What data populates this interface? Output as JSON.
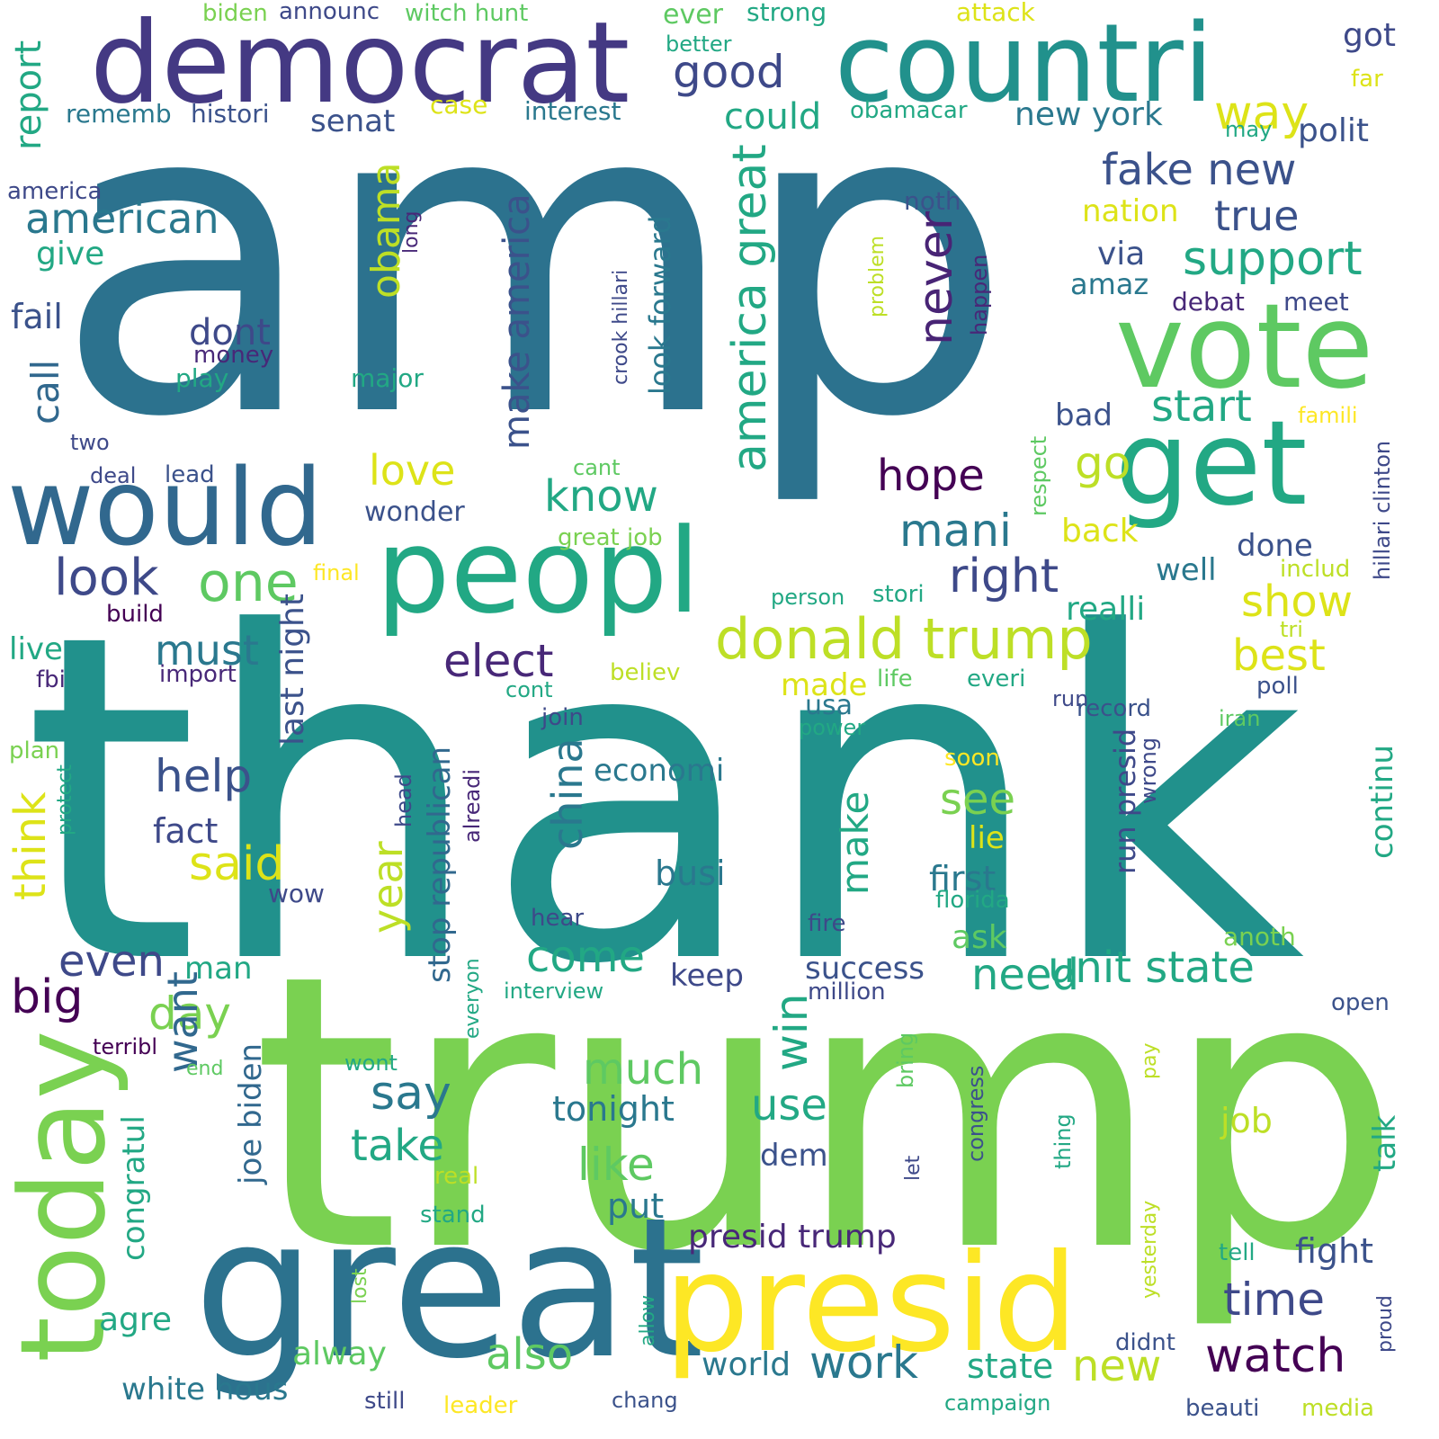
{
  "background": "#ffffff",
  "palette": [
    "#440154",
    "#3b528b",
    "#21918c",
    "#5ec962",
    "#fde725"
  ],
  "words": [
    {
      "text": "amp",
      "color": "#2c728e"
    },
    {
      "text": "thank",
      "color": "#21918c"
    },
    {
      "text": "trump",
      "color": "#7ad151"
    },
    {
      "text": "great",
      "color": "#2c728e"
    },
    {
      "text": "democrat",
      "color": "#443983"
    },
    {
      "text": "countri",
      "color": "#21918c"
    },
    {
      "text": "vote",
      "color": "#5ec962"
    },
    {
      "text": "get",
      "color": "#22a884"
    },
    {
      "text": "would",
      "color": "#31688e"
    },
    {
      "text": "peopl",
      "color": "#22a884"
    },
    {
      "text": "presid",
      "color": "#fde725"
    },
    {
      "text": "today",
      "color": "#7ad151"
    },
    {
      "text": "donald trump",
      "color": "#bddf26"
    },
    {
      "text": "unit state",
      "color": "#22a884"
    },
    {
      "text": "america great",
      "color": "#22a884"
    },
    {
      "text": "make america",
      "color": "#3b528b"
    },
    {
      "text": "fake new",
      "color": "#3b528b"
    },
    {
      "text": "support",
      "color": "#22a884"
    },
    {
      "text": "american",
      "color": "#2a788e"
    },
    {
      "text": "good",
      "color": "#3e4989"
    },
    {
      "text": "way",
      "color": "#dde318"
    },
    {
      "text": "true",
      "color": "#3b528b"
    },
    {
      "text": "obama",
      "color": "#bddf26"
    },
    {
      "text": "never",
      "color": "#482475"
    },
    {
      "text": "one",
      "color": "#5ec962"
    },
    {
      "text": "look",
      "color": "#3e4989"
    },
    {
      "text": "right",
      "color": "#3e4989"
    },
    {
      "text": "mani",
      "color": "#2a788e"
    },
    {
      "text": "love",
      "color": "#dde318"
    },
    {
      "text": "know",
      "color": "#22a884"
    },
    {
      "text": "go",
      "color": "#bddf26"
    },
    {
      "text": "start",
      "color": "#22a884"
    },
    {
      "text": "hope",
      "color": "#440154"
    },
    {
      "text": "elect",
      "color": "#482878"
    },
    {
      "text": "show",
      "color": "#dde318"
    },
    {
      "text": "best",
      "color": "#dde318"
    },
    {
      "text": "must",
      "color": "#2a788e"
    },
    {
      "text": "help",
      "color": "#3b528b"
    },
    {
      "text": "see",
      "color": "#7ad151"
    },
    {
      "text": "said",
      "color": "#dde318"
    },
    {
      "text": "even",
      "color": "#3e4989"
    },
    {
      "text": "big",
      "color": "#440154"
    },
    {
      "text": "day",
      "color": "#7ad151"
    },
    {
      "text": "say",
      "color": "#2a788e"
    },
    {
      "text": "want",
      "color": "#31688e"
    },
    {
      "text": "come",
      "color": "#22a884"
    },
    {
      "text": "need",
      "color": "#22a884"
    },
    {
      "text": "much",
      "color": "#5ec962"
    },
    {
      "text": "win",
      "color": "#22a884"
    },
    {
      "text": "use",
      "color": "#22a884"
    },
    {
      "text": "like",
      "color": "#5ec962"
    },
    {
      "text": "take",
      "color": "#22a884"
    },
    {
      "text": "time",
      "color": "#3e4989"
    },
    {
      "text": "watch",
      "color": "#440154"
    },
    {
      "text": "work",
      "color": "#2a788e"
    },
    {
      "text": "new",
      "color": "#bddf26"
    },
    {
      "text": "also",
      "color": "#5ec962"
    },
    {
      "text": "year",
      "color": "#bddf26"
    },
    {
      "text": "china",
      "color": "#2a788e"
    },
    {
      "text": "make",
      "color": "#22a884"
    },
    {
      "text": "think",
      "color": "#dde318"
    },
    {
      "text": "call",
      "color": "#31688e"
    },
    {
      "text": "last night",
      "color": "#3b528b"
    },
    {
      "text": "joe biden",
      "color": "#31688e"
    },
    {
      "text": "congratul",
      "color": "#22a884"
    },
    {
      "text": "stop republican",
      "color": "#31688e"
    },
    {
      "text": "run presid",
      "color": "#3e4989"
    },
    {
      "text": "presid trump",
      "color": "#482878"
    },
    {
      "text": "white hous",
      "color": "#2a788e"
    },
    {
      "text": "look forward",
      "color": "#2a788e"
    },
    {
      "text": "crook hillari",
      "color": "#3e4989"
    },
    {
      "text": "hillari clinton",
      "color": "#3e4989"
    },
    {
      "text": "new york",
      "color": "#2a788e"
    },
    {
      "text": "witch hunt",
      "color": "#5ec962"
    },
    {
      "text": "great job",
      "color": "#7ad151"
    },
    {
      "text": "continu",
      "color": "#22a884"
    },
    {
      "text": "could",
      "color": "#22a884"
    },
    {
      "text": "report",
      "color": "#22a884"
    },
    {
      "text": "senat",
      "color": "#3b528b"
    },
    {
      "text": "polit",
      "color": "#3b528b"
    },
    {
      "text": "got",
      "color": "#3e4989"
    },
    {
      "text": "nation",
      "color": "#dde318"
    },
    {
      "text": "give",
      "color": "#22a884"
    },
    {
      "text": "fail",
      "color": "#3b528b"
    },
    {
      "text": "via",
      "color": "#3b528b"
    },
    {
      "text": "amaz",
      "color": "#2a788e"
    },
    {
      "text": "bad",
      "color": "#3b528b"
    },
    {
      "text": "dont",
      "color": "#3e4989"
    },
    {
      "text": "money",
      "color": "#482878"
    },
    {
      "text": "play",
      "color": "#22a884"
    },
    {
      "text": "major",
      "color": "#22a884"
    },
    {
      "text": "wonder",
      "color": "#3b528b"
    },
    {
      "text": "back",
      "color": "#dde318"
    },
    {
      "text": "done",
      "color": "#3b528b"
    },
    {
      "text": "well",
      "color": "#2a788e"
    },
    {
      "text": "realli",
      "color": "#22a884"
    },
    {
      "text": "live",
      "color": "#22a884"
    },
    {
      "text": "fact",
      "color": "#3e4989"
    },
    {
      "text": "economi",
      "color": "#2a788e"
    },
    {
      "text": "busi",
      "color": "#2a788e"
    },
    {
      "text": "first",
      "color": "#2a788e"
    },
    {
      "text": "lie",
      "color": "#dde318"
    },
    {
      "text": "ask",
      "color": "#5ec962"
    },
    {
      "text": "usa",
      "color": "#2a788e"
    },
    {
      "text": "wow",
      "color": "#3e4989"
    },
    {
      "text": "man",
      "color": "#22a884"
    },
    {
      "text": "keep",
      "color": "#3e4989"
    },
    {
      "text": "success",
      "color": "#3b528b"
    },
    {
      "text": "tonight",
      "color": "#2a788e"
    },
    {
      "text": "dem",
      "color": "#3b528b"
    },
    {
      "text": "put",
      "color": "#2a788e"
    },
    {
      "text": "job",
      "color": "#bddf26"
    },
    {
      "text": "talk",
      "color": "#22a884"
    },
    {
      "text": "fight",
      "color": "#3b528b"
    },
    {
      "text": "world",
      "color": "#2a788e"
    },
    {
      "text": "state",
      "color": "#22a884"
    },
    {
      "text": "alway",
      "color": "#5ec962"
    },
    {
      "text": "agre",
      "color": "#22a884"
    },
    {
      "text": "made",
      "color": "#dde318"
    },
    {
      "text": "ever",
      "color": "#5ec962"
    },
    {
      "text": "strong",
      "color": "#22a884"
    },
    {
      "text": "better",
      "color": "#22a884"
    },
    {
      "text": "attack",
      "color": "#dde318"
    },
    {
      "text": "biden",
      "color": "#7ad151"
    },
    {
      "text": "announc",
      "color": "#3e4989"
    },
    {
      "text": "far",
      "color": "#dde318"
    },
    {
      "text": "rememb",
      "color": "#2a788e"
    },
    {
      "text": "histori",
      "color": "#3b528b"
    },
    {
      "text": "case",
      "color": "#dde318"
    },
    {
      "text": "interest",
      "color": "#2a788e"
    },
    {
      "text": "obamacar",
      "color": "#22a884"
    },
    {
      "text": "may",
      "color": "#22a884"
    },
    {
      "text": "america",
      "color": "#3e4989"
    },
    {
      "text": "long",
      "color": "#482878"
    },
    {
      "text": "noth",
      "color": "#3b528b"
    },
    {
      "text": "problem",
      "color": "#bddf26"
    },
    {
      "text": "happen",
      "color": "#482878"
    },
    {
      "text": "debat",
      "color": "#482878"
    },
    {
      "text": "meet",
      "color": "#3e4989"
    },
    {
      "text": "famili",
      "color": "#fde725"
    },
    {
      "text": "two",
      "color": "#3e4989"
    },
    {
      "text": "deal",
      "color": "#3e4989"
    },
    {
      "text": "lead",
      "color": "#3b528b"
    },
    {
      "text": "cant",
      "color": "#5ec962"
    },
    {
      "text": "respect",
      "color": "#5ec962"
    },
    {
      "text": "includ",
      "color": "#bddf26"
    },
    {
      "text": "final",
      "color": "#fde725"
    },
    {
      "text": "build",
      "color": "#440154"
    },
    {
      "text": "person",
      "color": "#22a884"
    },
    {
      "text": "stori",
      "color": "#22a884"
    },
    {
      "text": "tri",
      "color": "#bddf26"
    },
    {
      "text": "import",
      "color": "#482878"
    },
    {
      "text": "believ",
      "color": "#bddf26"
    },
    {
      "text": "life",
      "color": "#5ec962"
    },
    {
      "text": "everi",
      "color": "#22a884"
    },
    {
      "text": "run",
      "color": "#3e4989"
    },
    {
      "text": "fbi",
      "color": "#482878"
    },
    {
      "text": "cont",
      "color": "#22a884"
    },
    {
      "text": "join",
      "color": "#3e4989"
    },
    {
      "text": "power",
      "color": "#22a884"
    },
    {
      "text": "record",
      "color": "#3b528b"
    },
    {
      "text": "poll",
      "color": "#3b528b"
    },
    {
      "text": "iran",
      "color": "#5ec962"
    },
    {
      "text": "plan",
      "color": "#7ad151"
    },
    {
      "text": "protect",
      "color": "#22a884"
    },
    {
      "text": "head",
      "color": "#3e4989"
    },
    {
      "text": "alreadi",
      "color": "#482878"
    },
    {
      "text": "soon",
      "color": "#fde725"
    },
    {
      "text": "wrong",
      "color": "#3e4989"
    },
    {
      "text": "hear",
      "color": "#3e4989"
    },
    {
      "text": "fire",
      "color": "#3e4989"
    },
    {
      "text": "florida",
      "color": "#22a884"
    },
    {
      "text": "anoth",
      "color": "#7ad151"
    },
    {
      "text": "interview",
      "color": "#22a884"
    },
    {
      "text": "million",
      "color": "#3e4989"
    },
    {
      "text": "everyon",
      "color": "#22a884"
    },
    {
      "text": "open",
      "color": "#3b528b"
    },
    {
      "text": "terribl",
      "color": "#440154"
    },
    {
      "text": "end",
      "color": "#5ec962"
    },
    {
      "text": "wont",
      "color": "#22a884"
    },
    {
      "text": "bring",
      "color": "#5ec962"
    },
    {
      "text": "pay",
      "color": "#bddf26"
    },
    {
      "text": "congress",
      "color": "#3b528b"
    },
    {
      "text": "thing",
      "color": "#22a884"
    },
    {
      "text": "let",
      "color": "#3e4989"
    },
    {
      "text": "real",
      "color": "#bddf26"
    },
    {
      "text": "stand",
      "color": "#22a884"
    },
    {
      "text": "yesterday",
      "color": "#bddf26"
    },
    {
      "text": "tell",
      "color": "#22a884"
    },
    {
      "text": "lost",
      "color": "#7ad151"
    },
    {
      "text": "allow",
      "color": "#22a884"
    },
    {
      "text": "didnt",
      "color": "#3b528b"
    },
    {
      "text": "proud",
      "color": "#3e4989"
    },
    {
      "text": "still",
      "color": "#3e4989"
    },
    {
      "text": "leader",
      "color": "#fde725"
    },
    {
      "text": "chang",
      "color": "#3b528b"
    },
    {
      "text": "campaign",
      "color": "#22a884"
    },
    {
      "text": "beauti",
      "color": "#3b528b"
    },
    {
      "text": "media",
      "color": "#bddf26"
    }
  ]
}
